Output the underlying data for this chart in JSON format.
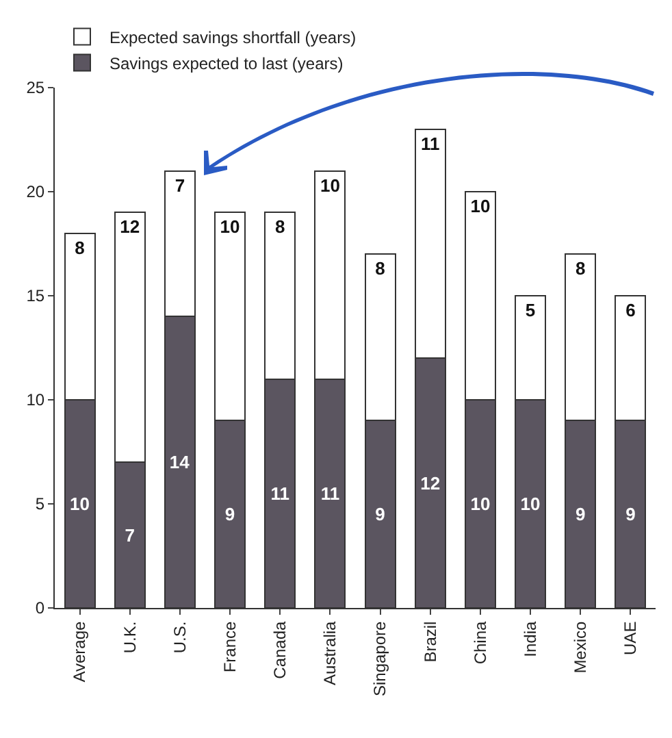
{
  "chart_data": {
    "type": "bar",
    "stacked": true,
    "categories": [
      "Average",
      "U.K.",
      "U.S.",
      "France",
      "Canada",
      "Australia",
      "Singapore",
      "Brazil",
      "China",
      "India",
      "Mexico",
      "UAE"
    ],
    "series": [
      {
        "name": "Savings expected to last (years)",
        "color": "#5b5560",
        "values": [
          10,
          7,
          14,
          9,
          11,
          11,
          9,
          12,
          10,
          10,
          9,
          9
        ]
      },
      {
        "name": "Expected savings shortfall (years)",
        "color": "#ffffff",
        "values": [
          8,
          12,
          7,
          10,
          8,
          10,
          8,
          11,
          10,
          5,
          8,
          6
        ]
      }
    ],
    "ylim": [
      0,
      25
    ],
    "yticks": [
      0,
      5,
      10,
      15,
      20,
      25
    ],
    "grid": false,
    "legend": "top left",
    "data_labels": true
  }
}
